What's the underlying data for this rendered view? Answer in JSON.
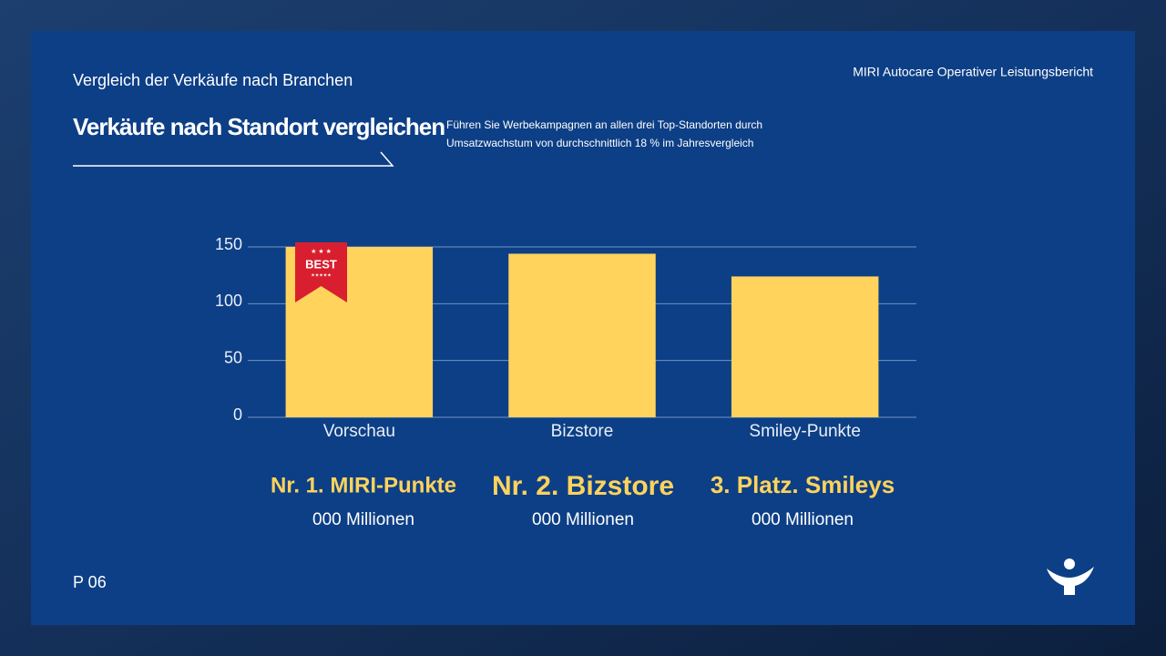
{
  "slide": {
    "section": "Vergleich der Verkäufe nach Branchen",
    "report": "MIRI Autocare Operativer Leistungsbericht",
    "heading": "Verkäufe nach Standort vergleichen",
    "description": [
      "Führen Sie Werbekampagnen an allen drei Top-Standorten durch",
      "Umsatzwachstum von durchschnittlich 18 % im Jahresvergleich"
    ],
    "badge": "BEST",
    "rankings": [
      {
        "title": "Nr. 1.  MIRI-Punkte",
        "subtitle": "000 Millionen"
      },
      {
        "title": "Nr. 2. Bizstore",
        "subtitle": "000 Millionen"
      },
      {
        "title": "3. Platz. Smileys",
        "subtitle": "000 Millionen"
      }
    ],
    "page": "P 06"
  },
  "chart_data": {
    "type": "bar",
    "categories": [
      "Vorschau",
      "Bizstore",
      "Smiley-Punkte"
    ],
    "values": [
      150,
      144,
      124
    ],
    "color": "#ffd35c",
    "ylim": [
      0,
      150
    ],
    "yticks": [
      0,
      50,
      100,
      150
    ],
    "grid": true
  }
}
